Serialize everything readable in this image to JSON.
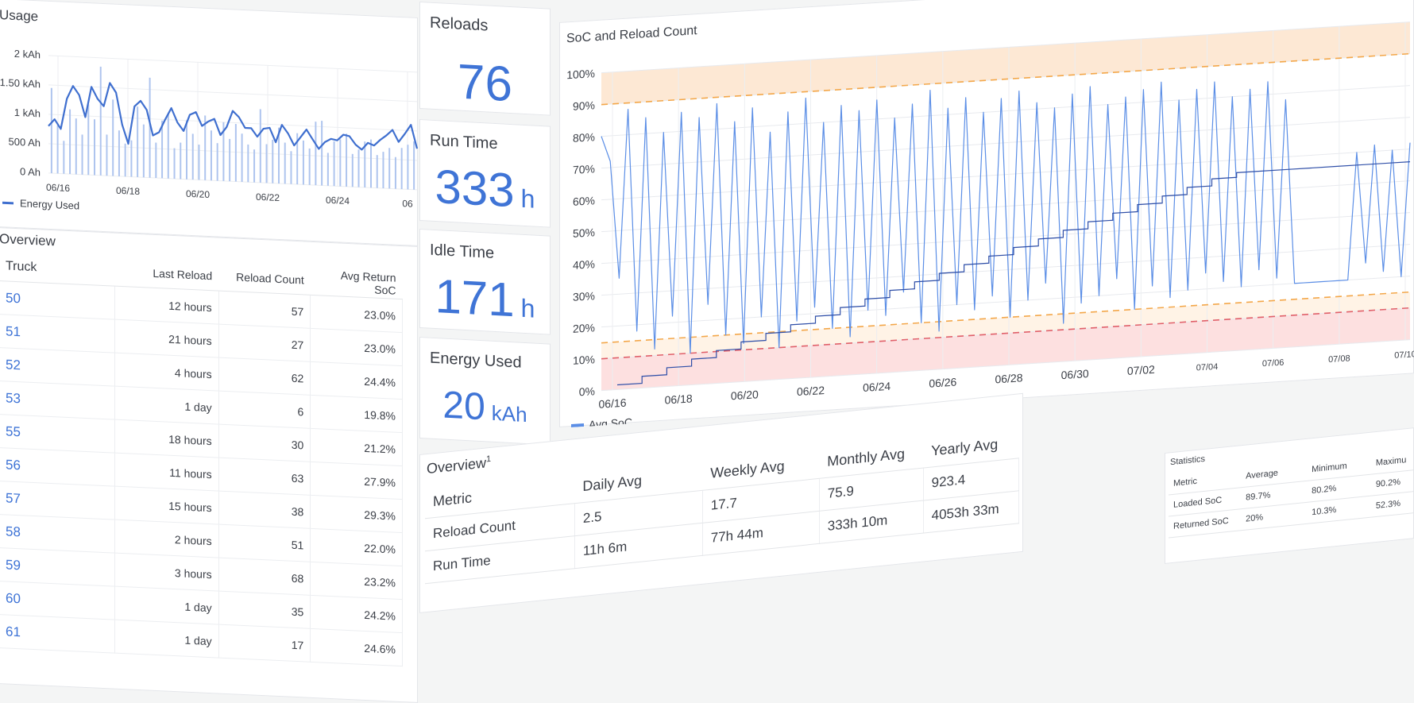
{
  "usage": {
    "title": "Usage",
    "y_ticks": [
      "2 kAh",
      "1.50 kAh",
      "1 kAh",
      "500 Ah",
      "0 Ah"
    ],
    "x_ticks": [
      "06/16",
      "06/18",
      "06/20",
      "06/22",
      "06/24",
      "06"
    ],
    "legend": "Energy Used",
    "color": "#3f6fcf"
  },
  "truck_table": {
    "title": "Overview",
    "columns": [
      "Truck",
      "Last Reload",
      "Reload Count",
      "Avg Return SoC"
    ],
    "rows": [
      {
        "truck": "50",
        "last": "12 hours",
        "count": "57",
        "soc": "23.0%"
      },
      {
        "truck": "51",
        "last": "21 hours",
        "count": "27",
        "soc": "23.0%"
      },
      {
        "truck": "52",
        "last": "4 hours",
        "count": "62",
        "soc": "24.4%"
      },
      {
        "truck": "53",
        "last": "1 day",
        "count": "6",
        "soc": "19.8%"
      },
      {
        "truck": "55",
        "last": "18 hours",
        "count": "30",
        "soc": "21.2%"
      },
      {
        "truck": "56",
        "last": "11 hours",
        "count": "63",
        "soc": "27.9%"
      },
      {
        "truck": "57",
        "last": "15 hours",
        "count": "38",
        "soc": "29.3%"
      },
      {
        "truck": "58",
        "last": "2 hours",
        "count": "51",
        "soc": "22.0%"
      },
      {
        "truck": "59",
        "last": "3 hours",
        "count": "68",
        "soc": "23.2%"
      },
      {
        "truck": "60",
        "last": "1 day",
        "count": "35",
        "soc": "24.2%"
      },
      {
        "truck": "61",
        "last": "1 day",
        "count": "17",
        "soc": "24.6%"
      }
    ]
  },
  "stats": {
    "reloads": {
      "title": "Reloads",
      "value": "76",
      "unit": ""
    },
    "run_time": {
      "title": "Run Time",
      "value": "333",
      "unit": "h"
    },
    "idle_time": {
      "title": "Idle Time",
      "value": "171",
      "unit": "h"
    },
    "energy_used": {
      "title": "Energy Used",
      "value": "20",
      "unit": "kAh"
    }
  },
  "soc_chart": {
    "title": "SoC and Reload Count",
    "y_ticks": [
      "100%",
      "90%",
      "80%",
      "70%",
      "60%",
      "50%",
      "40%",
      "30%",
      "20%",
      "10%",
      "0%"
    ],
    "x_ticks": [
      "06/16",
      "06/18",
      "06/20",
      "06/22",
      "06/24",
      "06/26",
      "06/28",
      "06/30",
      "07/02",
      "07/04",
      "07/06",
      "07/08",
      "07/10"
    ],
    "legend": "Avg SoC",
    "series_color": "#5b8ee6",
    "count_color": "#2f4fa8",
    "upper_band_color": "#fde8d4",
    "lower_band_color": "#fde0e0",
    "orange_threshold": "#f3a74a",
    "red_threshold": "#e0606a"
  },
  "overview_metrics": {
    "title": "Overview",
    "footnote": "1",
    "columns": [
      "Metric",
      "Daily Avg",
      "Weekly Avg",
      "Monthly Avg",
      "Yearly Avg"
    ],
    "rows": [
      {
        "metric": "Reload Count",
        "daily": "2.5",
        "weekly": "17.7",
        "monthly": "75.9",
        "yearly": "923.4"
      },
      {
        "metric": "Run Time",
        "daily": "11h 6m",
        "weekly": "77h 44m",
        "monthly": "333h 10m",
        "yearly": "4053h 33m"
      }
    ]
  },
  "statistics": {
    "title": "Statistics",
    "columns": [
      "Metric",
      "Average",
      "Minimum",
      "Maximu"
    ],
    "rows": [
      {
        "metric": "Loaded SoC",
        "average": "89.7%",
        "minimum": "80.2%",
        "maximum": "90.2%"
      },
      {
        "metric": "Returned SoC",
        "average": "20%",
        "minimum": "10.3%",
        "maximum": "52.3%"
      }
    ]
  },
  "chart_data": [
    {
      "type": "bar",
      "title": "Usage",
      "ylabel": "",
      "ylim": [
        0,
        2000
      ],
      "y_unit": "Ah",
      "x_start": "06/16",
      "x_end": "06/26",
      "bar_values": [
        1450,
        820,
        560,
        1100,
        950,
        680,
        1200,
        950,
        1850,
        700,
        1300,
        780,
        560,
        620,
        1200,
        900,
        1700,
        600,
        980,
        1100,
        520,
        620,
        1000,
        780,
        600,
        1100,
        850,
        640,
        1000,
        720,
        980,
        820,
        640,
        560,
        1250,
        660,
        740,
        950,
        700,
        560,
        870,
        750,
        620,
        1080,
        1100,
        560,
        760,
        800,
        900,
        560,
        640,
        780,
        820,
        560,
        620,
        690,
        540,
        700,
        760,
        820
      ],
      "series": [
        {
          "name": "Energy Used",
          "values": [
            800,
            920,
            760,
            1280,
            1500,
            1350,
            980,
            1500,
            1300,
            1180,
            1580,
            1420,
            880,
            560,
            1200,
            1300,
            1150,
            720,
            780,
            1000,
            1200,
            960,
            820,
            1100,
            1150,
            920,
            1000,
            1050,
            780,
            920,
            1200,
            1100,
            920,
            920,
            780,
            920,
            940,
            700,
            1000,
            860,
            660,
            800,
            940,
            780,
            620,
            740,
            800,
            780,
            880,
            860,
            720,
            640,
            760,
            720,
            820,
            900,
            1000,
            800,
            940,
            1100,
            700
          ]
        }
      ]
    },
    {
      "type": "line",
      "title": "SoC and Reload Count",
      "ylim": [
        0,
        100
      ],
      "y_unit": "%",
      "x_start": "06/16",
      "x_end": "07/10",
      "thresholds": {
        "upper_band": [
          90,
          100
        ],
        "lower_band": [
          0,
          15
        ],
        "orange_high": 90,
        "orange_low": 15,
        "red_low": 10
      },
      "series": [
        {
          "name": "Avg SoC",
          "values": [
            80,
            72,
            35,
            88,
            18,
            85,
            12,
            80,
            22,
            86,
            10,
            84,
            25,
            88,
            15,
            82,
            12,
            86,
            20,
            78,
            10,
            84,
            18,
            88,
            22,
            80,
            15,
            85,
            12,
            83,
            20,
            86,
            18,
            80,
            25,
            84,
            15,
            88,
            12,
            82,
            20,
            85,
            18,
            80,
            22,
            84,
            15,
            86,
            20,
            82,
            25,
            80,
            12,
            84,
            18,
            86,
            20,
            80,
            25,
            82,
            15,
            84,
            22,
            86,
            18,
            80,
            20,
            83,
            25,
            85,
            22,
            80,
            20,
            82,
            25,
            84,
            22,
            78,
            20,
            20,
            20,
            20,
            20,
            20,
            20,
            60,
            25,
            62,
            22,
            60,
            20,
            62
          ]
        },
        {
          "name": "Reload Count",
          "values": [
            2,
            5,
            8,
            11,
            14,
            17,
            20,
            23,
            26,
            29,
            32,
            35,
            38,
            41,
            44,
            47,
            50,
            53,
            56,
            59,
            62,
            65,
            68,
            71,
            74,
            76,
            76,
            76,
            76,
            76,
            76,
            76,
            76
          ]
        }
      ]
    }
  ]
}
